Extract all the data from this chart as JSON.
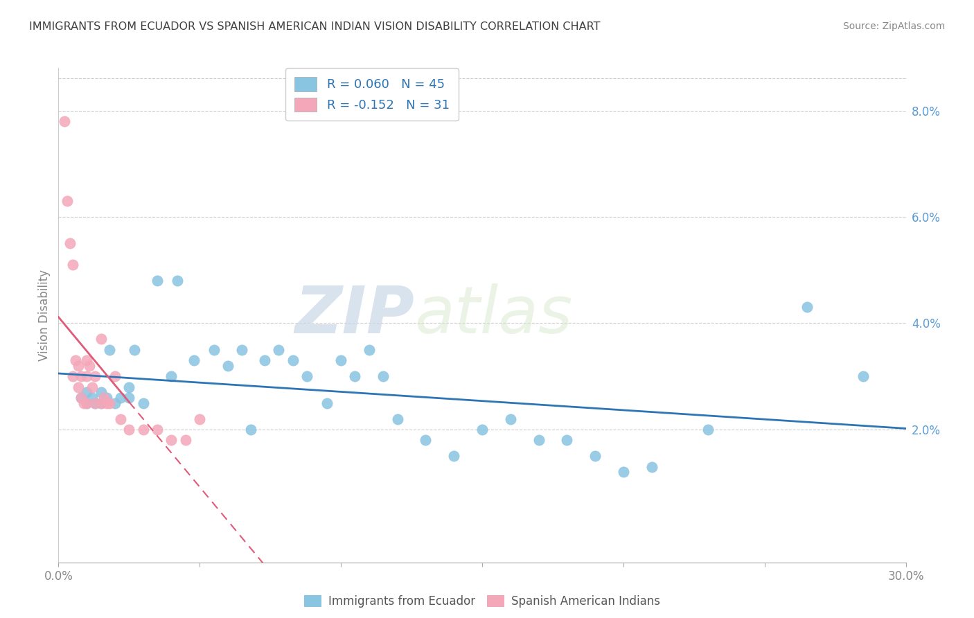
{
  "title": "IMMIGRANTS FROM ECUADOR VS SPANISH AMERICAN INDIAN VISION DISABILITY CORRELATION CHART",
  "source": "Source: ZipAtlas.com",
  "ylabel": "Vision Disability",
  "legend_label_1": "Immigrants from Ecuador",
  "legend_label_2": "Spanish American Indians",
  "r1": 0.06,
  "n1": 45,
  "r2": -0.152,
  "n2": 31,
  "xlim": [
    0.0,
    0.3
  ],
  "ylim": [
    -0.005,
    0.088
  ],
  "yticks": [
    0.02,
    0.04,
    0.06,
    0.08
  ],
  "ytick_labels": [
    "2.0%",
    "4.0%",
    "6.0%",
    "8.0%"
  ],
  "color_blue": "#89c4e1",
  "color_pink": "#f4a7b9",
  "color_blue_line": "#2e75b6",
  "color_pink_line": "#e05a7a",
  "watermark_zip": "ZIP",
  "watermark_atlas": "atlas",
  "blue_x": [
    0.008,
    0.01,
    0.01,
    0.012,
    0.013,
    0.015,
    0.015,
    0.017,
    0.018,
    0.02,
    0.022,
    0.025,
    0.025,
    0.027,
    0.03,
    0.035,
    0.04,
    0.042,
    0.048,
    0.055,
    0.06,
    0.065,
    0.068,
    0.073,
    0.078,
    0.083,
    0.088,
    0.095,
    0.1,
    0.105,
    0.11,
    0.115,
    0.12,
    0.13,
    0.14,
    0.15,
    0.16,
    0.17,
    0.18,
    0.19,
    0.2,
    0.21,
    0.23,
    0.265,
    0.285
  ],
  "blue_y": [
    0.026,
    0.025,
    0.027,
    0.026,
    0.025,
    0.027,
    0.025,
    0.026,
    0.035,
    0.025,
    0.026,
    0.028,
    0.026,
    0.035,
    0.025,
    0.048,
    0.03,
    0.048,
    0.033,
    0.035,
    0.032,
    0.035,
    0.02,
    0.033,
    0.035,
    0.033,
    0.03,
    0.025,
    0.033,
    0.03,
    0.035,
    0.03,
    0.022,
    0.018,
    0.015,
    0.02,
    0.022,
    0.018,
    0.018,
    0.015,
    0.012,
    0.013,
    0.02,
    0.043,
    0.03
  ],
  "pink_x": [
    0.002,
    0.003,
    0.004,
    0.005,
    0.005,
    0.006,
    0.007,
    0.007,
    0.008,
    0.008,
    0.009,
    0.01,
    0.01,
    0.01,
    0.011,
    0.012,
    0.013,
    0.013,
    0.015,
    0.015,
    0.016,
    0.017,
    0.018,
    0.02,
    0.022,
    0.025,
    0.03,
    0.035,
    0.04,
    0.045,
    0.05
  ],
  "pink_y": [
    0.078,
    0.063,
    0.055,
    0.051,
    0.03,
    0.033,
    0.032,
    0.028,
    0.03,
    0.026,
    0.025,
    0.033,
    0.03,
    0.025,
    0.032,
    0.028,
    0.03,
    0.025,
    0.037,
    0.025,
    0.026,
    0.025,
    0.025,
    0.03,
    0.022,
    0.02,
    0.02,
    0.02,
    0.018,
    0.018,
    0.022
  ],
  "pink_line_x": [
    0.0,
    0.16
  ],
  "blue_line_x": [
    0.0,
    0.3
  ]
}
